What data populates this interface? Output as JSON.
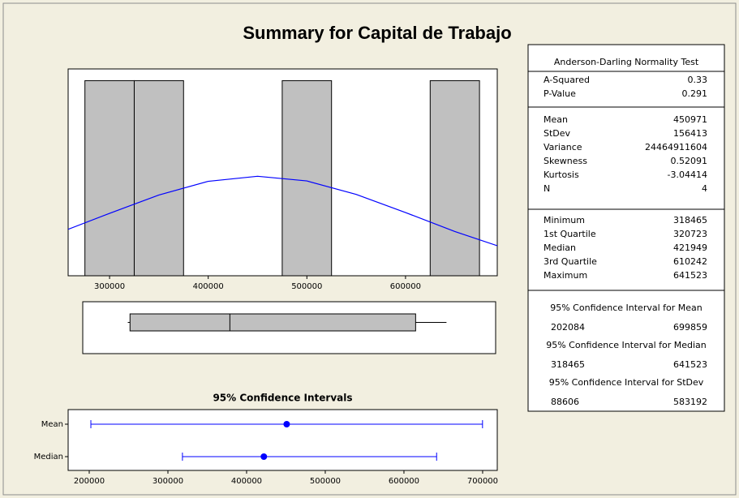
{
  "title": "Summary for Capital de Trabajo",
  "stats": {
    "test": "Anderson-Darling Normality Test",
    "normality": [
      {
        "label": "A-Squared",
        "value": 0.33
      },
      {
        "label": "P-Value",
        "value": 0.291
      }
    ],
    "summary": [
      {
        "label": "Mean",
        "value": 450971
      },
      {
        "label": "StDev",
        "value": 156413
      },
      {
        "label": "Variance",
        "value": 24464911604
      },
      {
        "label": "Skewness",
        "value": 0.52091
      },
      {
        "label": "Kurtosis",
        "value": -3.04414
      },
      {
        "label": "N",
        "value": 4
      }
    ],
    "quantiles": [
      {
        "label": "Minimum",
        "value": 318465
      },
      {
        "label": "1st Quartile",
        "value": 320723
      },
      {
        "label": "Median",
        "value": 421949
      },
      {
        "label": "3rd Quartile",
        "value": 610242
      },
      {
        "label": "Maximum",
        "value": 641523
      }
    ],
    "intervals": [
      {
        "title": "95% Confidence Interval for Mean",
        "lower": 202084,
        "upper": 699859
      },
      {
        "title": "95% Confidence Interval for Median",
        "lower": 318465,
        "upper": 641523
      },
      {
        "title": "95% Confidence Interval for StDev",
        "lower": 88606,
        "upper": 583192
      }
    ]
  },
  "chart_data": [
    {
      "type": "histogram",
      "bins": [
        275000,
        325000,
        375000,
        425000,
        475000,
        525000,
        575000,
        625000,
        675000
      ],
      "counts": [
        1,
        1,
        0,
        0,
        1,
        0,
        0,
        1
      ],
      "color": "#c0c0c0",
      "xlim": [
        258000,
        693000
      ],
      "ylim": [
        0,
        1.06
      ],
      "xticks": [
        300000,
        400000,
        500000,
        600000
      ],
      "curve": {
        "color": "#0000ff",
        "x": [
          258000,
          300000,
          350000,
          400000,
          450000,
          500000,
          550000,
          600000,
          650000,
          693000
        ],
        "y": [
          0.238,
          0.32,
          0.414,
          0.484,
          0.51,
          0.486,
          0.417,
          0.324,
          0.227,
          0.154
        ]
      }
    },
    {
      "type": "boxplot",
      "min": 318465,
      "q1": 320723,
      "median": 421949,
      "q3": 610242,
      "max": 641523,
      "color": "#c0c0c0",
      "xlim": [
        258000,
        693000
      ]
    },
    {
      "type": "interval",
      "title": "95% Confidence Intervals",
      "categories": [
        "Mean",
        "Median"
      ],
      "centers": [
        450971,
        421949
      ],
      "lower": [
        202084,
        318465
      ],
      "upper": [
        699859,
        641523
      ],
      "color": "#0000ff",
      "xlim": [
        173200,
        718600
      ],
      "xticks": [
        200000,
        300000,
        400000,
        500000,
        600000,
        700000
      ]
    }
  ]
}
